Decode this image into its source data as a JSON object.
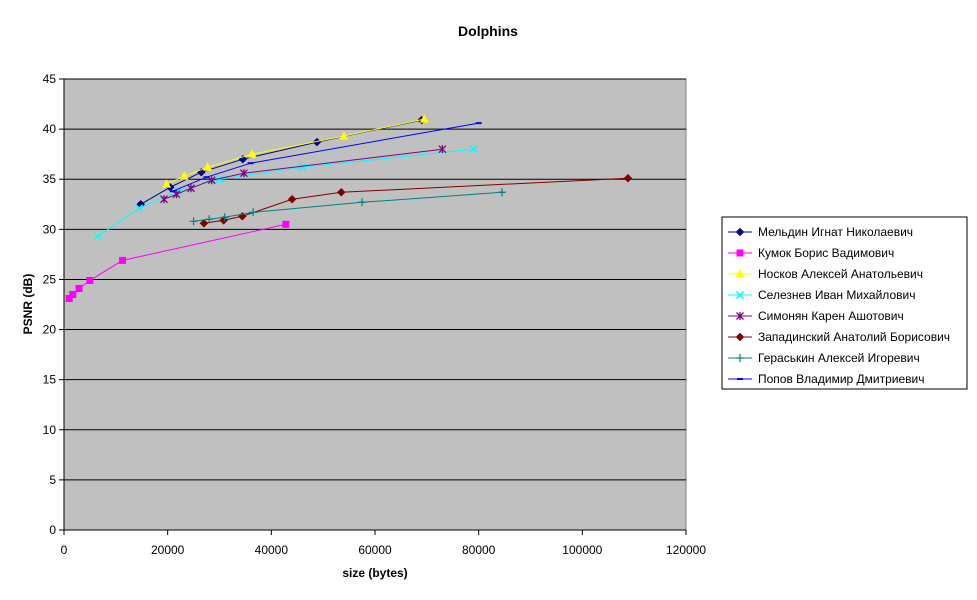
{
  "chart_data": {
    "type": "line",
    "title": "Dolphins",
    "xlabel": "size (bytes)",
    "ylabel": "PSNR (dB)",
    "xlim": [
      0,
      120000
    ],
    "ylim": [
      0,
      45
    ],
    "x_ticks": [
      0,
      20000,
      40000,
      60000,
      80000,
      100000,
      120000
    ],
    "y_ticks": [
      0,
      5,
      10,
      15,
      20,
      25,
      30,
      35,
      40,
      45
    ],
    "grid": "horizontal",
    "plot_background": "#c0c0c0",
    "legend_position": "right",
    "series": [
      {
        "name": "Мельдин Игнат Николаевич",
        "color": "#000080",
        "marker": "diamond",
        "points": [
          [
            14800,
            32.5
          ],
          [
            20500,
            34.2
          ],
          [
            26500,
            35.7
          ],
          [
            34500,
            37.0
          ],
          [
            48800,
            38.7
          ],
          [
            69000,
            40.9
          ]
        ]
      },
      {
        "name": "Кумок Борис Вадимович",
        "color": "#ff00ff",
        "marker": "square",
        "points": [
          [
            1000,
            23.1
          ],
          [
            1700,
            23.5
          ],
          [
            2900,
            24.1
          ],
          [
            5000,
            24.9
          ],
          [
            11300,
            26.9
          ],
          [
            42800,
            30.5
          ]
        ]
      },
      {
        "name": "Носков Алексей Анатольевич",
        "color": "#ffff00",
        "marker": "triangle",
        "points": [
          [
            19800,
            34.5
          ],
          [
            23200,
            35.3
          ],
          [
            27700,
            36.2
          ],
          [
            36300,
            37.5
          ],
          [
            54000,
            39.3
          ],
          [
            69500,
            41.0
          ]
        ]
      },
      {
        "name": "Селезнев Иван Михайлович",
        "color": "#00ffff",
        "marker": "x",
        "points": [
          [
            6500,
            29.3
          ],
          [
            14500,
            32.1
          ],
          [
            22000,
            33.8
          ],
          [
            30000,
            35.0
          ],
          [
            46000,
            36.2
          ],
          [
            79000,
            38.0
          ]
        ]
      },
      {
        "name": "Симонян Карен Ашотович",
        "color": "#800080",
        "marker": "star",
        "points": [
          [
            19300,
            33.0
          ],
          [
            21700,
            33.5
          ],
          [
            24500,
            34.1
          ],
          [
            28500,
            34.9
          ],
          [
            34700,
            35.6
          ],
          [
            73000,
            38.0
          ]
        ]
      },
      {
        "name": "Западинский Анатолий Борисович",
        "color": "#800000",
        "marker": "diamond",
        "points": [
          [
            27000,
            30.6
          ],
          [
            30800,
            30.9
          ],
          [
            34400,
            31.3
          ],
          [
            44000,
            33.0
          ],
          [
            53500,
            33.7
          ],
          [
            108800,
            35.1
          ]
        ]
      },
      {
        "name": "Гераськин Алексей Игоревич",
        "color": "#008080",
        "marker": "plus",
        "points": [
          [
            25000,
            30.8
          ],
          [
            28000,
            31.0
          ],
          [
            31000,
            31.2
          ],
          [
            36500,
            31.7
          ],
          [
            57500,
            32.7
          ],
          [
            84500,
            33.7
          ]
        ]
      },
      {
        "name": "Попов Владимир Дмитриевич",
        "color": "#0000ff",
        "marker": "dash",
        "points": [
          [
            21000,
            33.8
          ],
          [
            27500,
            35.2
          ],
          [
            36000,
            36.6
          ],
          [
            80000,
            40.6
          ]
        ]
      }
    ]
  }
}
